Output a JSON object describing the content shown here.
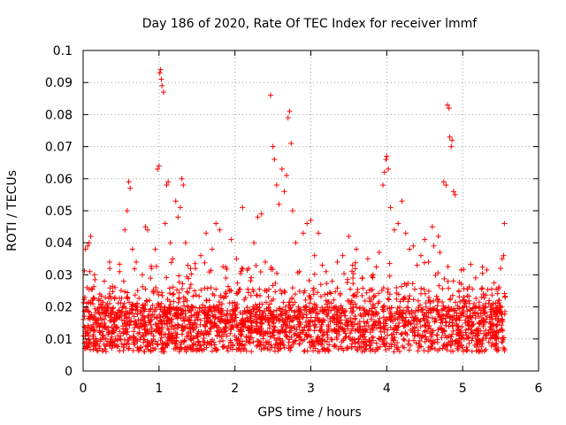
{
  "chart_data": {
    "type": "scatter",
    "title": "Day 186 of 2020, Rate Of TEC Index for receiver lmmf",
    "xlabel": "GPS time / hours",
    "ylabel": "ROTI / TECUs",
    "xlim": [
      0,
      6
    ],
    "ylim": [
      0,
      0.1
    ],
    "x_ticks": [
      0,
      1,
      2,
      3,
      4,
      5,
      6
    ],
    "x_tick_labels": [
      "0",
      "1",
      "2",
      "3",
      "4",
      "5",
      "6"
    ],
    "y_ticks": [
      0,
      0.01,
      0.02,
      0.03,
      0.04,
      0.05,
      0.06,
      0.07,
      0.08,
      0.09,
      0.1
    ],
    "y_tick_labels": [
      "0",
      "0.01",
      "0.02",
      "0.03",
      "0.04",
      "0.05",
      "0.06",
      "0.07",
      "0.08",
      "0.09",
      "0.1"
    ],
    "grid": true,
    "marker": "+",
    "color": "#ff0000",
    "series": [
      {
        "name": "ROTI",
        "points": [
          [
            0.03,
            0.038
          ],
          [
            0.05,
            0.026
          ],
          [
            0.06,
            0.039
          ],
          [
            0.08,
            0.04
          ],
          [
            0.09,
            0.031
          ],
          [
            0.1,
            0.042
          ],
          [
            0.12,
            0.022
          ],
          [
            0.15,
            0.03
          ],
          [
            0.18,
            0.016
          ],
          [
            0.22,
            0.024
          ],
          [
            0.28,
            0.028
          ],
          [
            0.35,
            0.021
          ],
          [
            0.42,
            0.026
          ],
          [
            0.48,
            0.031
          ],
          [
            0.55,
            0.044
          ],
          [
            0.58,
            0.05
          ],
          [
            0.6,
            0.059
          ],
          [
            0.62,
            0.057
          ],
          [
            0.65,
            0.038
          ],
          [
            0.7,
            0.034
          ],
          [
            0.78,
            0.03
          ],
          [
            0.82,
            0.045
          ],
          [
            0.85,
            0.044
          ],
          [
            0.9,
            0.032
          ],
          [
            0.95,
            0.038
          ],
          [
            0.98,
            0.063
          ],
          [
            1.0,
            0.064
          ],
          [
            1.01,
            0.093
          ],
          [
            1.02,
            0.094
          ],
          [
            1.03,
            0.091
          ],
          [
            1.04,
            0.089
          ],
          [
            1.06,
            0.087
          ],
          [
            1.08,
            0.046
          ],
          [
            1.1,
            0.058
          ],
          [
            1.12,
            0.059
          ],
          [
            1.15,
            0.04
          ],
          [
            1.18,
            0.035
          ],
          [
            1.22,
            0.053
          ],
          [
            1.25,
            0.048
          ],
          [
            1.28,
            0.051
          ],
          [
            1.3,
            0.06
          ],
          [
            1.32,
            0.058
          ],
          [
            1.35,
            0.04
          ],
          [
            1.38,
            0.033
          ],
          [
            1.42,
            0.027
          ],
          [
            1.48,
            0.032
          ],
          [
            1.55,
            0.036
          ],
          [
            1.62,
            0.043
          ],
          [
            1.7,
            0.038
          ],
          [
            1.75,
            0.046
          ],
          [
            1.8,
            0.044
          ],
          [
            1.88,
            0.029
          ],
          [
            1.95,
            0.041
          ],
          [
            2.02,
            0.035
          ],
          [
            2.1,
            0.051
          ],
          [
            2.18,
            0.032
          ],
          [
            2.25,
            0.04
          ],
          [
            2.3,
            0.048
          ],
          [
            2.35,
            0.049
          ],
          [
            2.4,
            0.034
          ],
          [
            2.47,
            0.086
          ],
          [
            2.5,
            0.07
          ],
          [
            2.52,
            0.066
          ],
          [
            2.55,
            0.058
          ],
          [
            2.58,
            0.052
          ],
          [
            2.62,
            0.063
          ],
          [
            2.65,
            0.056
          ],
          [
            2.68,
            0.061
          ],
          [
            2.7,
            0.079
          ],
          [
            2.72,
            0.081
          ],
          [
            2.74,
            0.071
          ],
          [
            2.76,
            0.05
          ],
          [
            2.8,
            0.04
          ],
          [
            2.85,
            0.031
          ],
          [
            2.9,
            0.043
          ],
          [
            2.95,
            0.046
          ],
          [
            3.0,
            0.047
          ],
          [
            3.05,
            0.036
          ],
          [
            3.1,
            0.043
          ],
          [
            3.15,
            0.033
          ],
          [
            3.2,
            0.031
          ],
          [
            3.28,
            0.028
          ],
          [
            3.35,
            0.034
          ],
          [
            3.42,
            0.036
          ],
          [
            3.5,
            0.042
          ],
          [
            3.55,
            0.033
          ],
          [
            3.6,
            0.038
          ],
          [
            3.68,
            0.029
          ],
          [
            3.75,
            0.035
          ],
          [
            3.82,
            0.03
          ],
          [
            3.9,
            0.037
          ],
          [
            3.95,
            0.058
          ],
          [
            3.97,
            0.062
          ],
          [
            3.99,
            0.066
          ],
          [
            4.0,
            0.067
          ],
          [
            4.02,
            0.063
          ],
          [
            4.05,
            0.051
          ],
          [
            4.1,
            0.044
          ],
          [
            4.15,
            0.046
          ],
          [
            4.2,
            0.053
          ],
          [
            4.25,
            0.043
          ],
          [
            4.3,
            0.038
          ],
          [
            4.35,
            0.039
          ],
          [
            4.4,
            0.033
          ],
          [
            4.45,
            0.036
          ],
          [
            4.5,
            0.041
          ],
          [
            4.55,
            0.034
          ],
          [
            4.6,
            0.045
          ],
          [
            4.62,
            0.039
          ],
          [
            4.68,
            0.042
          ],
          [
            4.7,
            0.037
          ],
          [
            4.75,
            0.059
          ],
          [
            4.78,
            0.058
          ],
          [
            4.8,
            0.083
          ],
          [
            4.82,
            0.082
          ],
          [
            4.83,
            0.073
          ],
          [
            4.85,
            0.07
          ],
          [
            4.86,
            0.072
          ],
          [
            4.88,
            0.056
          ],
          [
            4.9,
            0.055
          ],
          [
            4.95,
            0.025
          ],
          [
            5.0,
            0.022
          ],
          [
            5.05,
            0.02
          ],
          [
            5.1,
            0.019
          ],
          [
            5.15,
            0.021
          ],
          [
            5.2,
            0.018
          ],
          [
            5.25,
            0.023
          ],
          [
            5.3,
            0.02
          ],
          [
            5.35,
            0.022
          ],
          [
            5.4,
            0.021
          ],
          [
            5.45,
            0.019
          ],
          [
            5.48,
            0.022
          ],
          [
            5.5,
            0.032
          ],
          [
            5.52,
            0.035
          ],
          [
            5.54,
            0.036
          ],
          [
            5.55,
            0.046
          ],
          [
            5.56,
            0.023
          ]
        ]
      }
    ],
    "density_note": "dense band of many points between 0.005 and 0.02 across 0-5.55 h"
  }
}
